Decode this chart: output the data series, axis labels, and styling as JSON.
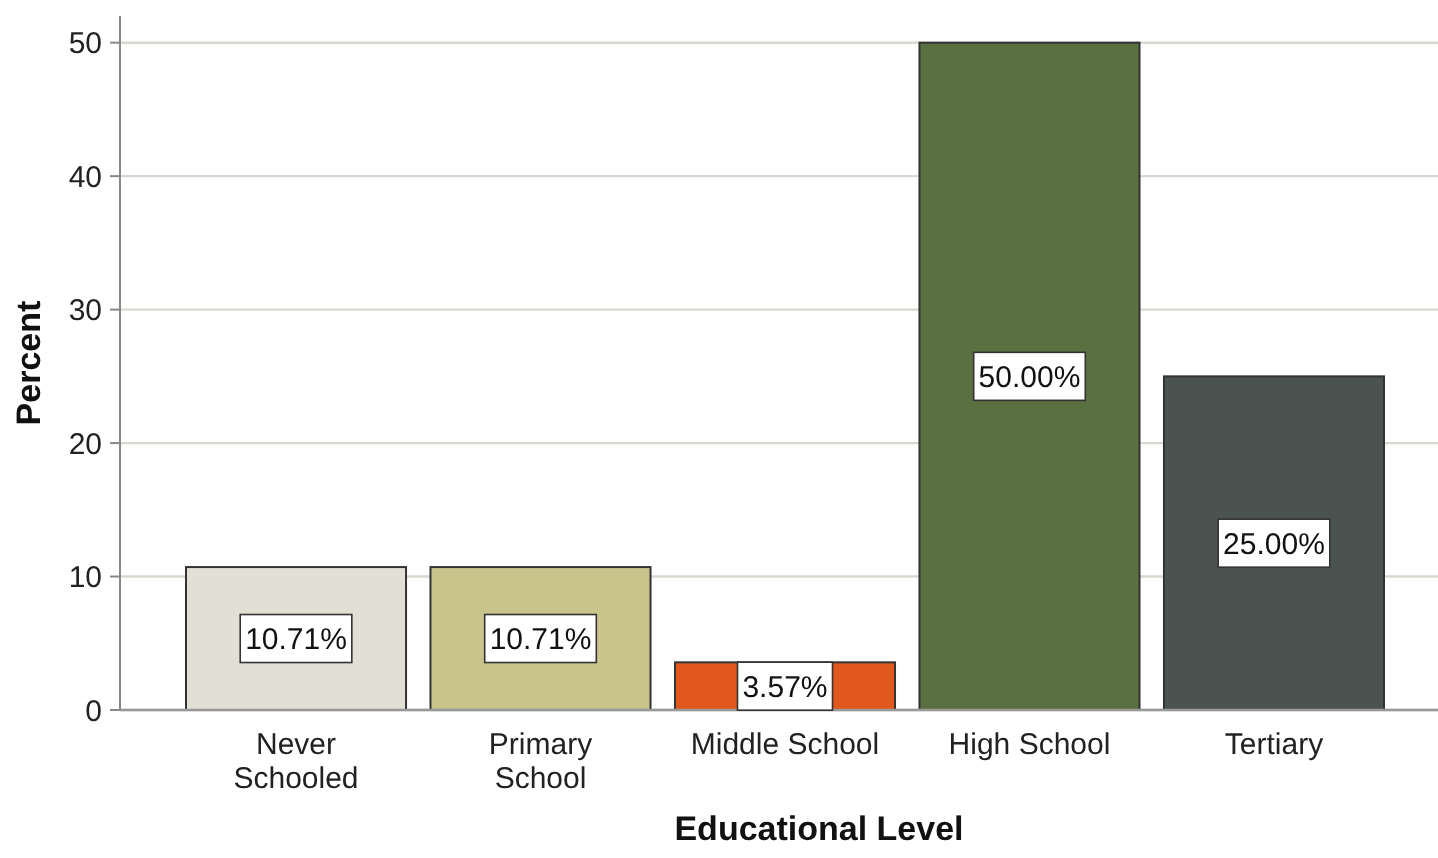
{
  "chart_data": {
    "type": "bar",
    "xlabel": "Educational Level",
    "ylabel": "Percent",
    "categories": [
      "Never Schooled",
      "Primary School",
      "Middle School",
      "High School",
      "Tertiary"
    ],
    "values": [
      10.71,
      10.71,
      3.57,
      50.0,
      25.0
    ],
    "colors": [
      "#e2dfd4",
      "#c9c38c",
      "#e0581c",
      "#5b7040",
      "#4b5351"
    ],
    "value_labels": [
      "10.71%",
      "10.71%",
      "3.57%",
      "50.00%",
      "25.00%"
    ],
    "ylim": [
      0,
      52
    ],
    "yticks": [
      0,
      10,
      20,
      30,
      40,
      50
    ],
    "grid": "y"
  }
}
